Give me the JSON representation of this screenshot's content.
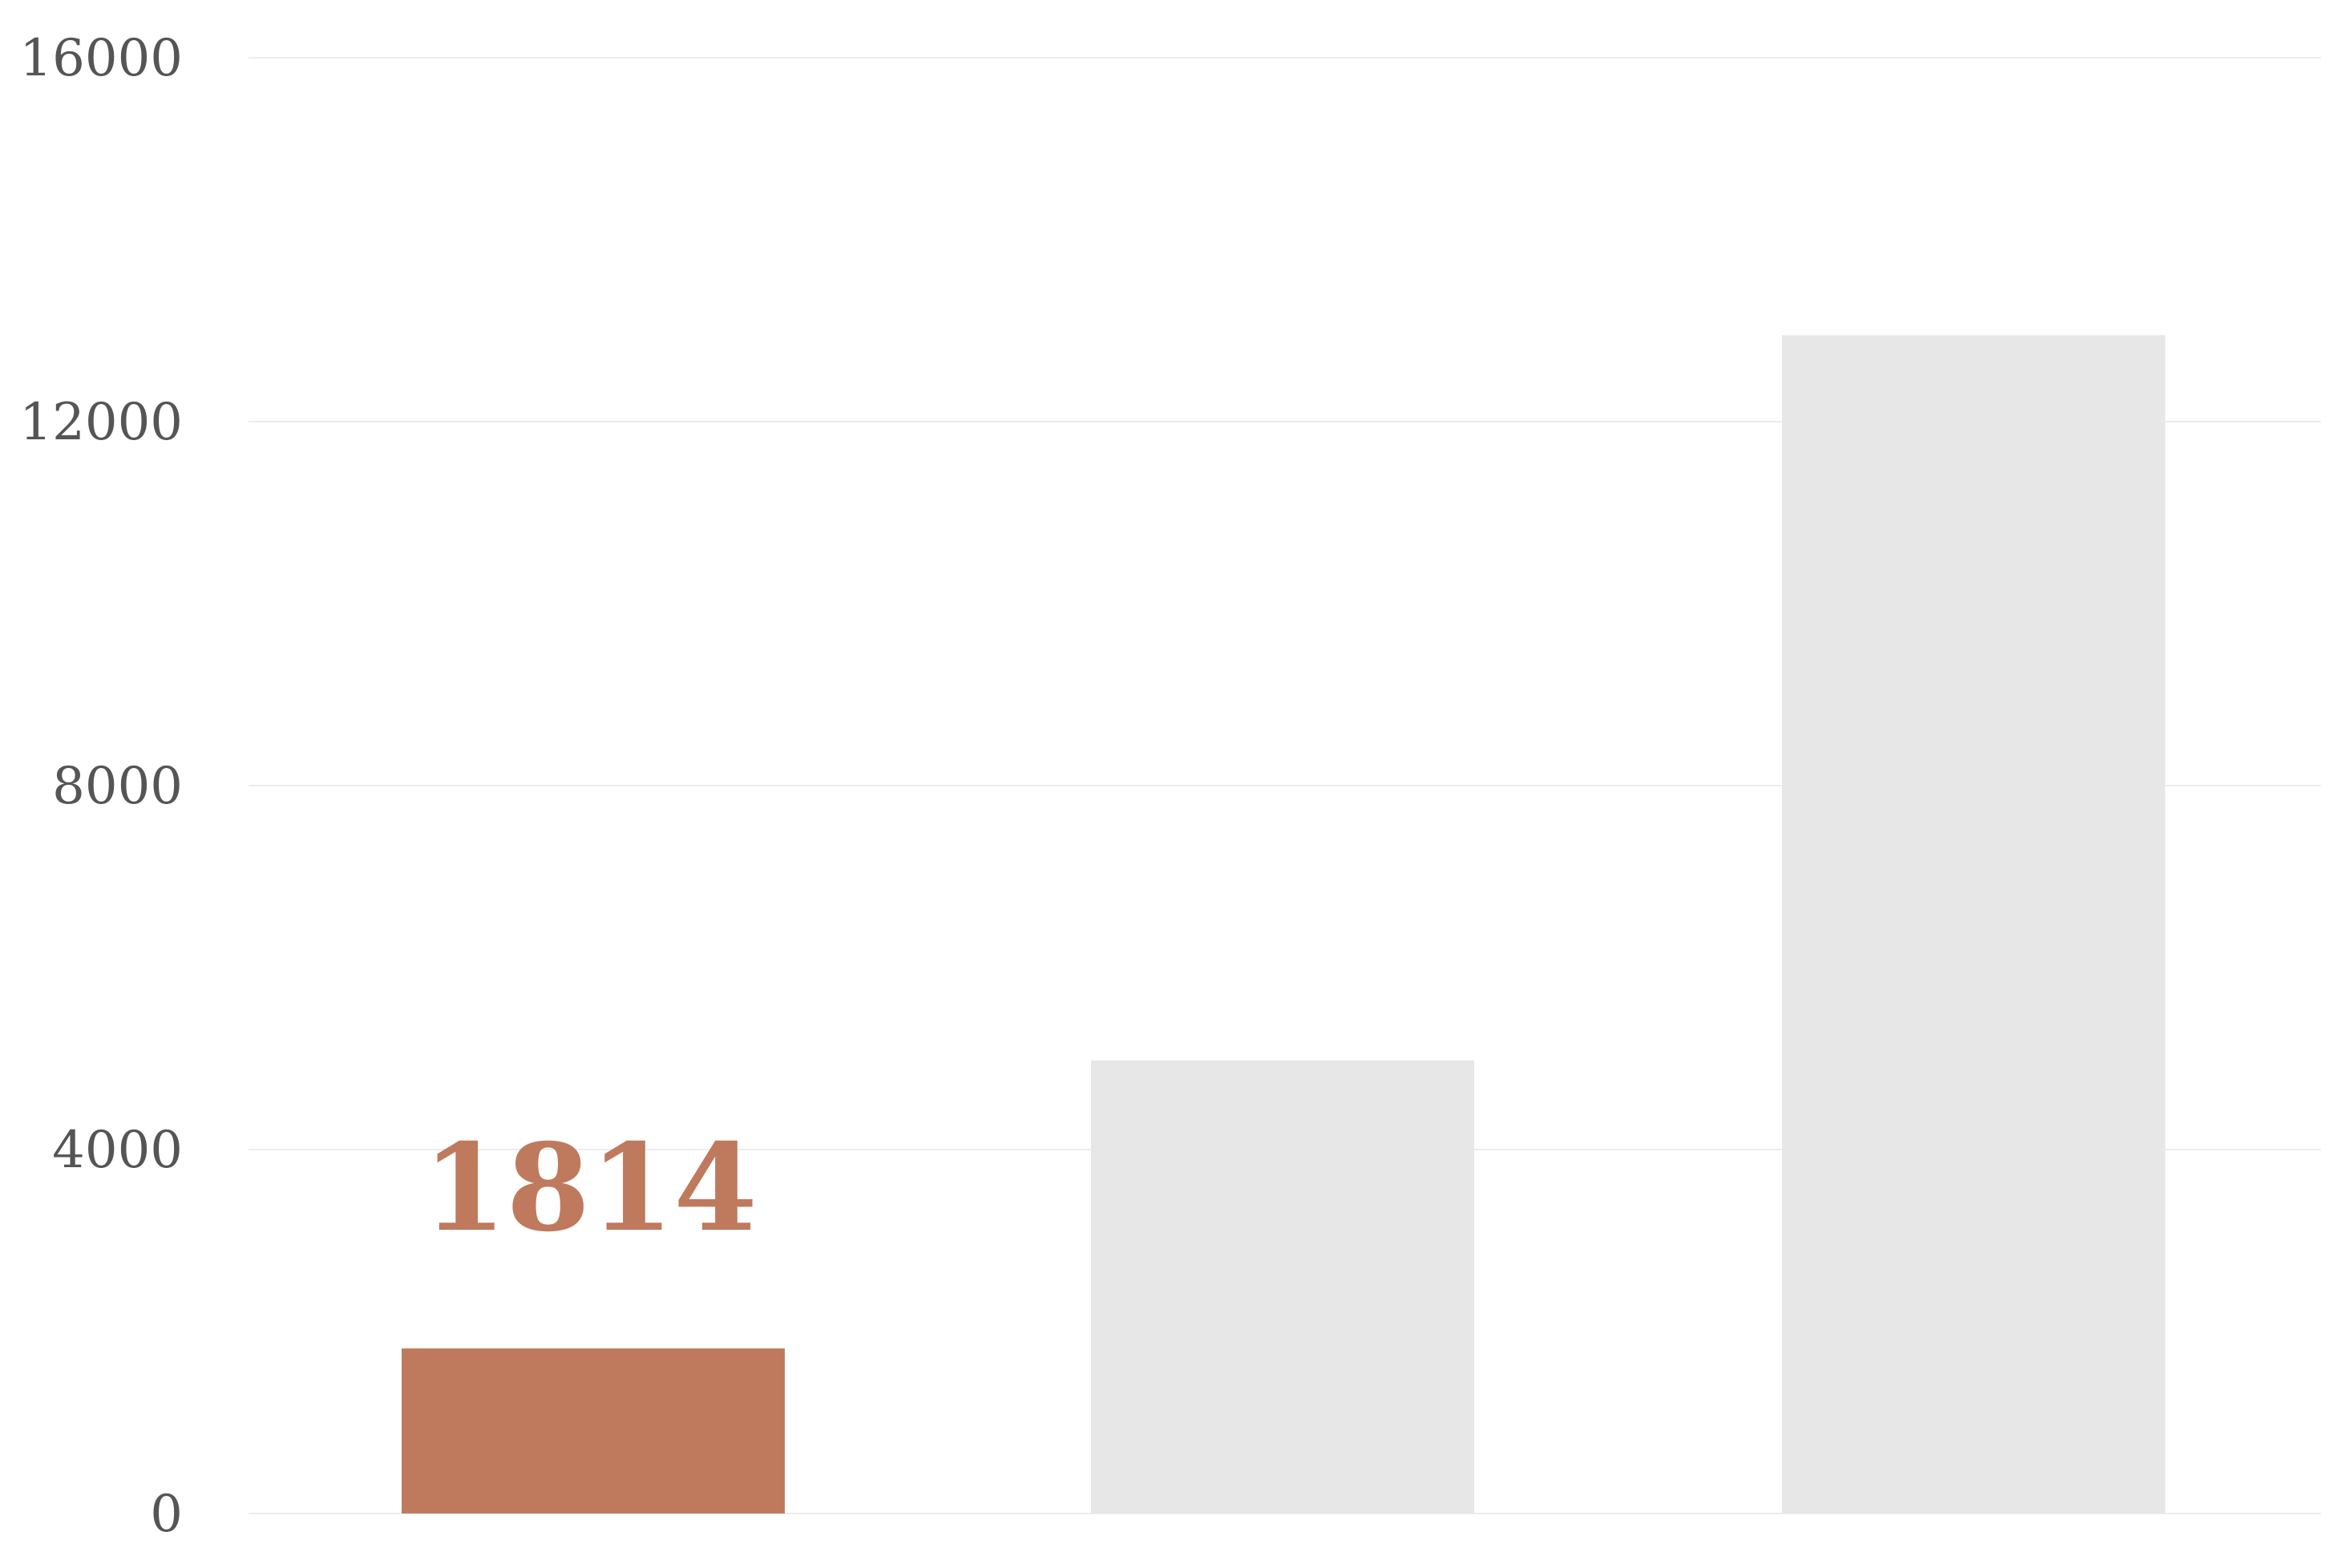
{
  "chart_data": {
    "type": "bar",
    "categories": [
      "",
      "",
      ""
    ],
    "values": [
      1814,
      4980,
      12950
    ],
    "highlight_index": 0,
    "data_labels": [
      "1814",
      "",
      ""
    ],
    "ylim": [
      0,
      16000
    ],
    "yticks": [
      0,
      4000,
      8000,
      12000,
      16000
    ],
    "ytick_labels": [
      "0",
      "4000",
      "8000",
      "12000",
      "16000"
    ],
    "grid": true,
    "title": "",
    "xlabel": "",
    "ylabel": "",
    "colors": {
      "highlight": "#bf7a5e",
      "default": "#e7e7e7",
      "grid": "#ececec",
      "tick_text": "#555555"
    }
  }
}
